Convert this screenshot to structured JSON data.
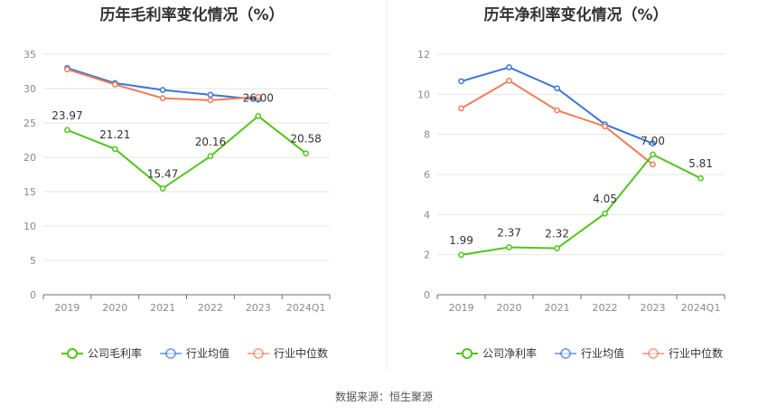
{
  "source": "数据来源：恒生聚源",
  "chart_data": [
    {
      "type": "line",
      "title": "历年毛利率变化情况（%）",
      "categories": [
        "2019",
        "2020",
        "2021",
        "2022",
        "2023",
        "2024Q1"
      ],
      "ylim": [
        0,
        35
      ],
      "yticks": [
        0,
        5,
        10,
        15,
        20,
        25,
        30,
        35
      ],
      "grid": true,
      "legend_position": "bottom",
      "series": [
        {
          "name": "公司毛利率",
          "color": "#52c41a",
          "values": [
            23.97,
            21.21,
            15.47,
            20.16,
            26.0,
            20.58
          ],
          "labels": [
            "23.97",
            "21.21",
            "15.47",
            "20.16",
            "26.00",
            "20.58"
          ]
        },
        {
          "name": "行业均值",
          "color": "#3a76d8",
          "values": [
            33.0,
            30.8,
            29.8,
            29.1,
            28.4,
            null
          ]
        },
        {
          "name": "行业中位数",
          "color": "#f07c5a",
          "values": [
            32.8,
            30.6,
            28.6,
            28.3,
            28.8,
            null
          ]
        }
      ]
    },
    {
      "type": "line",
      "title": "历年净利率变化情况（%）",
      "categories": [
        "2019",
        "2020",
        "2021",
        "2022",
        "2023",
        "2024Q1"
      ],
      "ylim": [
        0,
        12
      ],
      "yticks": [
        0,
        2,
        4,
        6,
        8,
        10,
        12
      ],
      "grid": true,
      "legend_position": "bottom",
      "series": [
        {
          "name": "公司净利率",
          "color": "#52c41a",
          "values": [
            1.99,
            2.37,
            2.32,
            4.05,
            7.0,
            5.81
          ],
          "labels": [
            "1.99",
            "2.37",
            "2.32",
            "4.05",
            "7.00",
            "5.81"
          ]
        },
        {
          "name": "行业均值",
          "color": "#3a76d8",
          "values": [
            10.65,
            11.35,
            10.3,
            8.5,
            7.55,
            null
          ]
        },
        {
          "name": "行业中位数",
          "color": "#f07c5a",
          "values": [
            9.3,
            10.68,
            9.2,
            8.4,
            6.5,
            null
          ]
        }
      ]
    }
  ]
}
